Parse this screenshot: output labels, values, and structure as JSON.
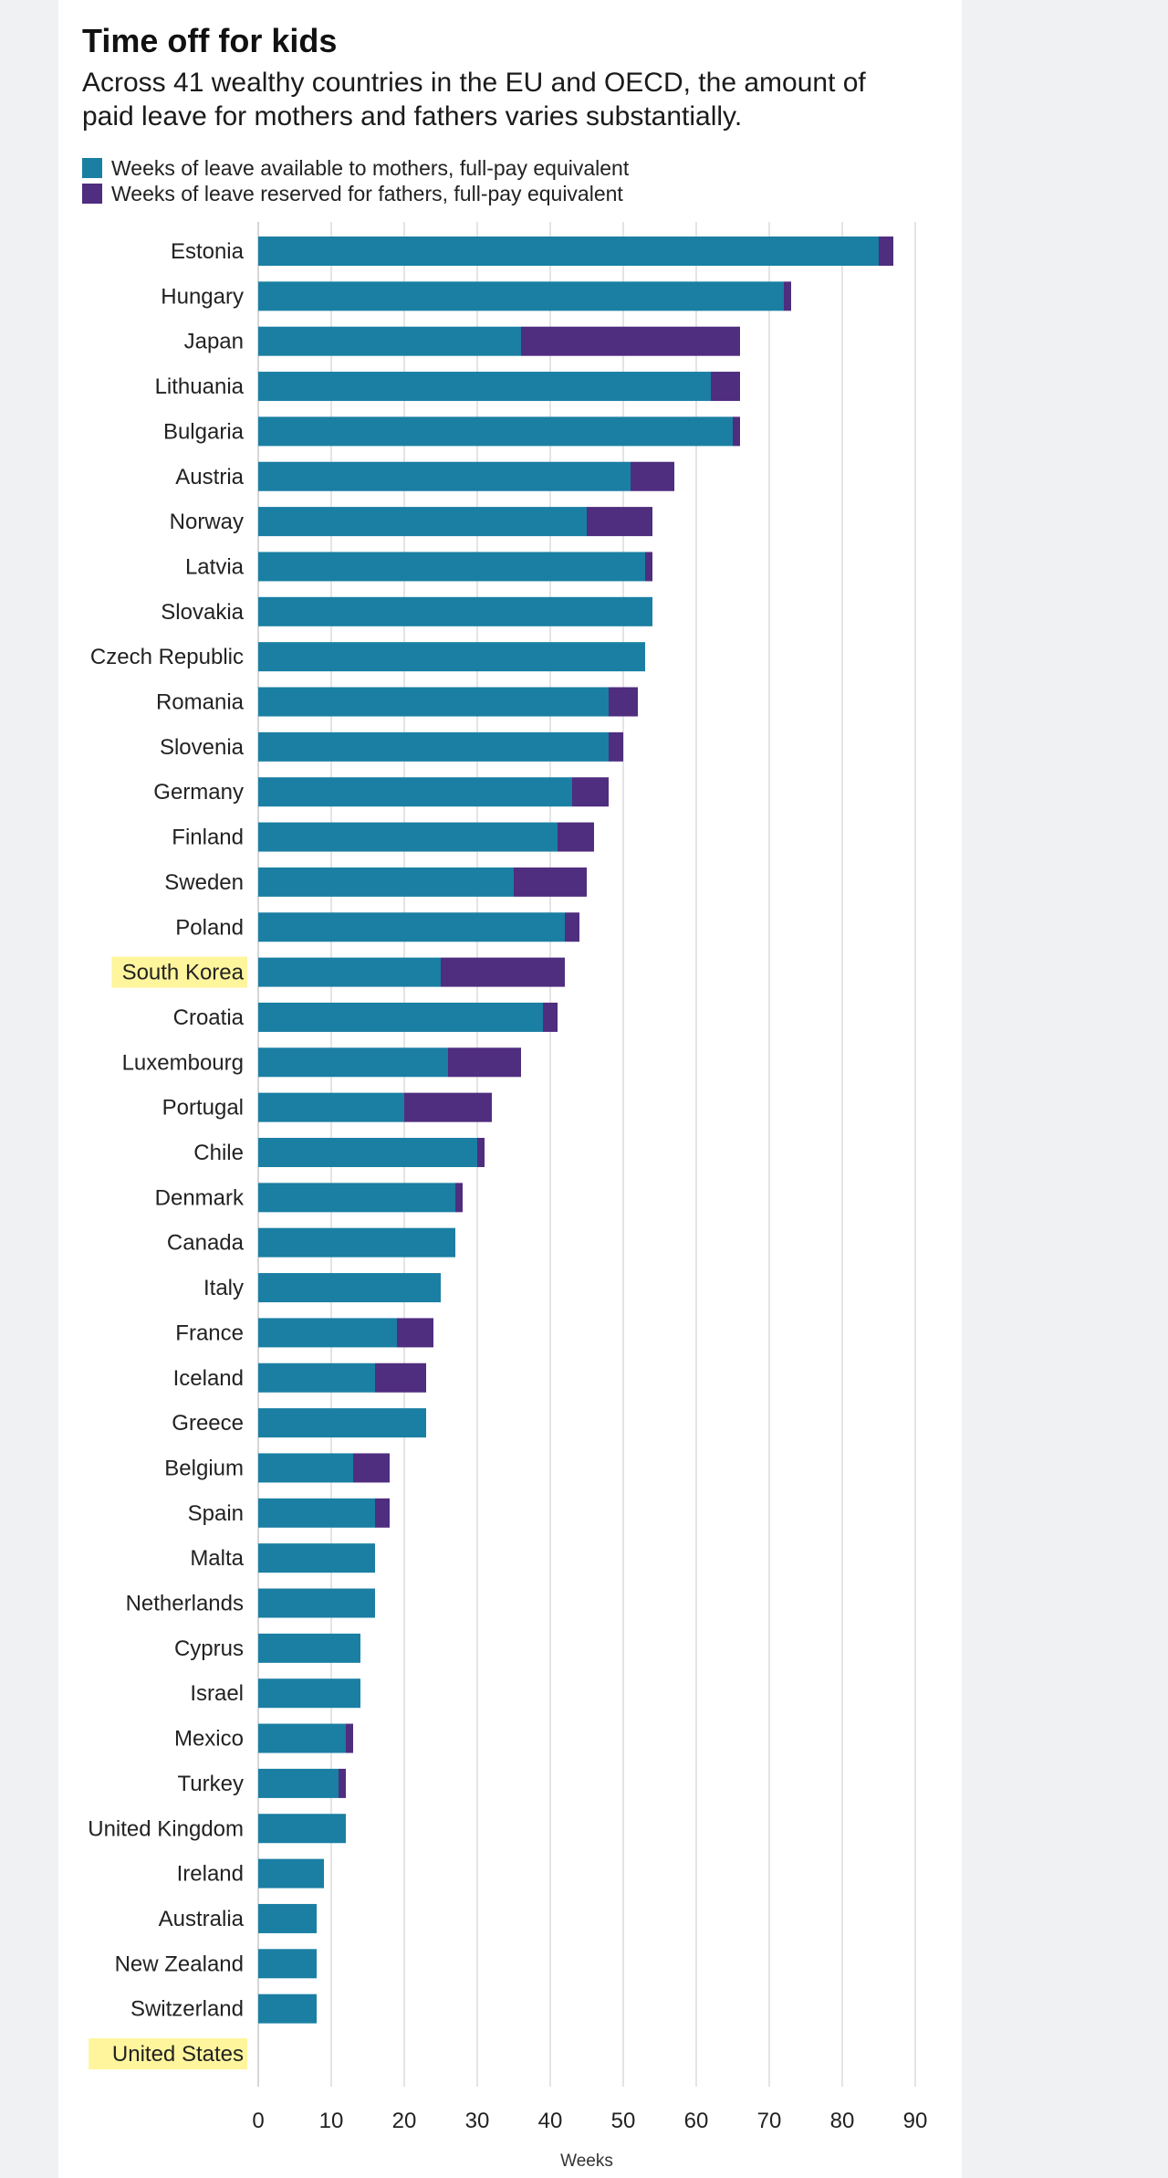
{
  "chart_data": {
    "type": "bar",
    "orientation": "horizontal",
    "stacked": true,
    "title": "Time off for kids",
    "subtitle": "Across 41 wealthy countries in the EU and OECD, the amount of paid leave for mothers and fathers varies substantially.",
    "xlabel": "Weeks",
    "ylabel": "",
    "xlim": [
      0,
      90
    ],
    "xticks": [
      0,
      10,
      20,
      30,
      40,
      50,
      60,
      70,
      80,
      90
    ],
    "grid": true,
    "legend_position": "top-left",
    "highlighted_categories": [
      "South Korea",
      "United States"
    ],
    "highlight_color": "#fff59d",
    "categories": [
      "Estonia",
      "Hungary",
      "Japan",
      "Lithuania",
      "Bulgaria",
      "Austria",
      "Norway",
      "Latvia",
      "Slovakia",
      "Czech Republic",
      "Romania",
      "Slovenia",
      "Germany",
      "Finland",
      "Sweden",
      "Poland",
      "South Korea",
      "Croatia",
      "Luxembourg",
      "Portugal",
      "Chile",
      "Denmark",
      "Canada",
      "Italy",
      "France",
      "Iceland",
      "Greece",
      "Belgium",
      "Spain",
      "Malta",
      "Netherlands",
      "Cyprus",
      "Israel",
      "Mexico",
      "Turkey",
      "United Kingdom",
      "Ireland",
      "Australia",
      "New Zealand",
      "Switzerland",
      "United States"
    ],
    "series": [
      {
        "name": "Weeks of leave available to mothers, full-pay equivalent",
        "color": "#1a7fa3",
        "values": [
          85,
          72,
          36,
          62,
          65,
          51,
          45,
          53,
          54,
          53,
          48,
          48,
          43,
          41,
          35,
          42,
          25,
          39,
          26,
          20,
          30,
          27,
          27,
          25,
          19,
          16,
          23,
          13,
          16,
          16,
          16,
          14,
          14,
          12,
          11,
          12,
          9,
          8,
          8,
          8,
          0
        ]
      },
      {
        "name": "Weeks of leave reserved for fathers, full-pay equivalent",
        "color": "#4f2d7f",
        "values": [
          2,
          1,
          30,
          4,
          1,
          6,
          9,
          1,
          0,
          0,
          4,
          2,
          5,
          5,
          10,
          2,
          17,
          2,
          10,
          12,
          1,
          1,
          0,
          0,
          5,
          7,
          0,
          5,
          2,
          0,
          0,
          0,
          0,
          1,
          1,
          0,
          0,
          0,
          0,
          0,
          0
        ]
      }
    ]
  }
}
